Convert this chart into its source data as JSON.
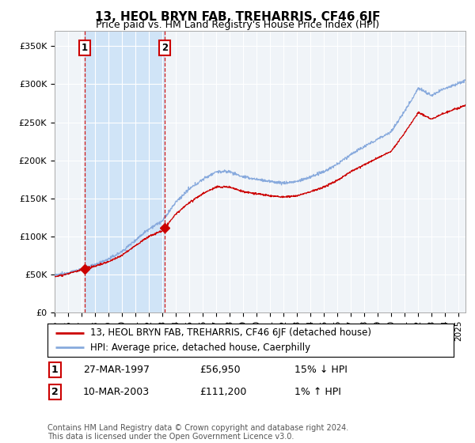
{
  "title": "13, HEOL BRYN FAB, TREHARRIS, CF46 6JF",
  "subtitle": "Price paid vs. HM Land Registry's House Price Index (HPI)",
  "legend_line1": "13, HEOL BRYN FAB, TREHARRIS, CF46 6JF (detached house)",
  "legend_line2": "HPI: Average price, detached house, Caerphilly",
  "transaction1_label": "1",
  "transaction1_date": "27-MAR-1997",
  "transaction1_price": "£56,950",
  "transaction1_hpi": "15% ↓ HPI",
  "transaction1_year": 1997.21,
  "transaction1_value": 56950,
  "transaction2_label": "2",
  "transaction2_date": "10-MAR-2003",
  "transaction2_price": "£111,200",
  "transaction2_hpi": "1% ↑ HPI",
  "transaction2_year": 2003.19,
  "transaction2_value": 111200,
  "footer": "Contains HM Land Registry data © Crown copyright and database right 2024.\nThis data is licensed under the Open Government Licence v3.0.",
  "price_line_color": "#cc0000",
  "hpi_line_color": "#88aadd",
  "shade_color": "#d0e4f7",
  "background_color": "#ffffff",
  "plot_bg_color": "#f0f4f8",
  "ylim": [
    0,
    370000
  ],
  "xlim_start": 1995.0,
  "xlim_end": 2025.5
}
